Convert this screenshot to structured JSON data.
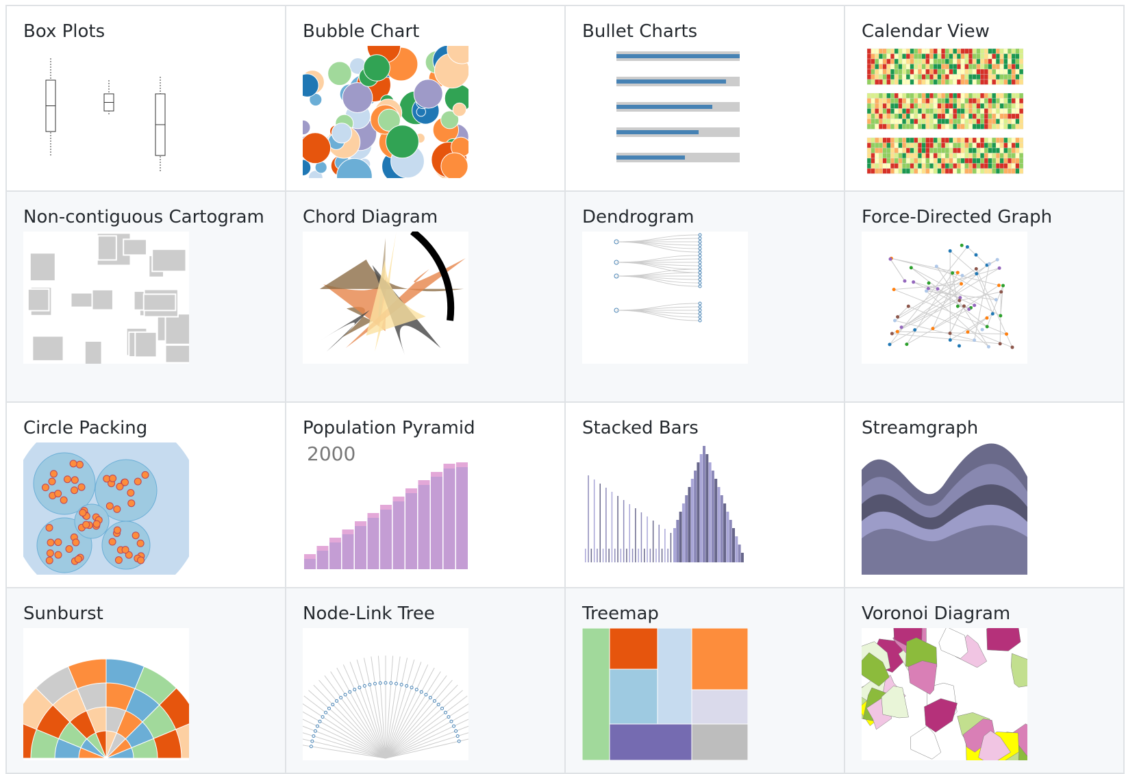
{
  "gallery": {
    "items": [
      {
        "title": "Box Plots",
        "thumb": "box"
      },
      {
        "title": "Bubble Chart",
        "thumb": "bubble"
      },
      {
        "title": "Bullet Charts",
        "thumb": "bullet"
      },
      {
        "title": "Calendar View",
        "thumb": "calendar"
      },
      {
        "title": "Non-contiguous Cartogram",
        "thumb": "cartogram"
      },
      {
        "title": "Chord Diagram",
        "thumb": "chord"
      },
      {
        "title": "Dendrogram",
        "thumb": "dendrogram"
      },
      {
        "title": "Force-Directed Graph",
        "thumb": "force"
      },
      {
        "title": "Circle Packing",
        "thumb": "pack"
      },
      {
        "title": "Population Pyramid",
        "thumb": "pyramid",
        "caption": "2000"
      },
      {
        "title": "Stacked Bars",
        "thumb": "stacked"
      },
      {
        "title": "Streamgraph",
        "thumb": "stream"
      },
      {
        "title": "Sunburst",
        "thumb": "sunburst"
      },
      {
        "title": "Node-Link Tree",
        "thumb": "tree"
      },
      {
        "title": "Treemap",
        "thumb": "treemap"
      },
      {
        "title": "Voronoi Diagram",
        "thumb": "voronoi"
      }
    ]
  },
  "colors": {
    "border": "#dfe2e5",
    "alt_row": "#f6f8fa",
    "text": "#24292e"
  }
}
